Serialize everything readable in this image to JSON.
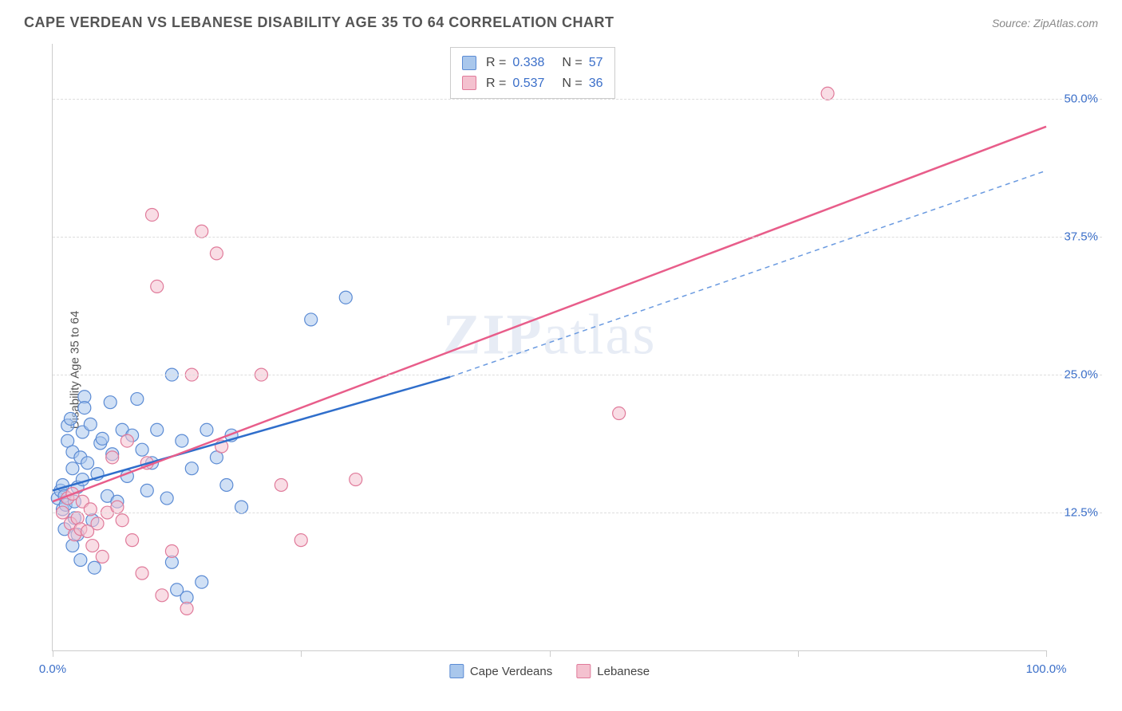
{
  "header": {
    "title": "CAPE VERDEAN VS LEBANESE DISABILITY AGE 35 TO 64 CORRELATION CHART",
    "source_label": "Source: ZipAtlas.com"
  },
  "chart": {
    "type": "scatter",
    "ylabel": "Disability Age 35 to 64",
    "watermark": "ZIPatlas",
    "xlim": [
      0,
      100
    ],
    "ylim": [
      0,
      55
    ],
    "xtick_positions": [
      0,
      25,
      50,
      75,
      100
    ],
    "xtick_labels": [
      "0.0%",
      "",
      "",
      "",
      "100.0%"
    ],
    "ytick_positions": [
      12.5,
      25.0,
      37.5,
      50.0
    ],
    "ytick_labels": [
      "12.5%",
      "25.0%",
      "37.5%",
      "50.0%"
    ],
    "grid_color": "#dddddd",
    "axis_color": "#cccccc",
    "background_color": "#ffffff",
    "tick_label_color": "#3b6fc9",
    "label_fontsize": 15,
    "title_fontsize": 18,
    "marker_radius": 8,
    "marker_opacity": 0.55,
    "series": [
      {
        "name": "Cape Verdeans",
        "fill": "#a9c7ec",
        "stroke": "#5b8bd4",
        "line_color": "#2f6ecb",
        "line_style": "solid",
        "dashed_ext_color": "#6a9ae0",
        "r": "0.338",
        "n": "57",
        "trend": {
          "x1": 0,
          "y1": 14.5,
          "x2": 40,
          "y2": 24.8
        },
        "trend_ext": {
          "x1": 40,
          "y1": 24.8,
          "x2": 100,
          "y2": 43.5
        },
        "points": [
          [
            0.5,
            13.8
          ],
          [
            0.8,
            14.5
          ],
          [
            1.0,
            12.8
          ],
          [
            1.0,
            15.0
          ],
          [
            1.2,
            14.0
          ],
          [
            1.3,
            13.2
          ],
          [
            1.5,
            19.0
          ],
          [
            1.5,
            20.4
          ],
          [
            1.8,
            21.0
          ],
          [
            2.0,
            18.0
          ],
          [
            2.0,
            16.5
          ],
          [
            2.2,
            13.5
          ],
          [
            2.2,
            12.0
          ],
          [
            2.5,
            10.5
          ],
          [
            2.5,
            14.8
          ],
          [
            2.8,
            17.5
          ],
          [
            3.0,
            15.5
          ],
          [
            3.0,
            19.8
          ],
          [
            3.2,
            23.0
          ],
          [
            3.2,
            22.0
          ],
          [
            3.5,
            17.0
          ],
          [
            3.8,
            20.5
          ],
          [
            4.0,
            11.8
          ],
          [
            4.2,
            7.5
          ],
          [
            4.5,
            16.0
          ],
          [
            4.8,
            18.8
          ],
          [
            5.0,
            19.2
          ],
          [
            5.5,
            14.0
          ],
          [
            5.8,
            22.5
          ],
          [
            6.0,
            17.8
          ],
          [
            6.5,
            13.5
          ],
          [
            7.0,
            20.0
          ],
          [
            7.5,
            15.8
          ],
          [
            8.0,
            19.5
          ],
          [
            8.5,
            22.8
          ],
          [
            9.0,
            18.2
          ],
          [
            9.5,
            14.5
          ],
          [
            10.0,
            17.0
          ],
          [
            10.5,
            20.0
          ],
          [
            11.5,
            13.8
          ],
          [
            12.0,
            8.0
          ],
          [
            12.5,
            5.5
          ],
          [
            13.0,
            19.0
          ],
          [
            13.5,
            4.8
          ],
          [
            14.0,
            16.5
          ],
          [
            15.0,
            6.2
          ],
          [
            16.5,
            17.5
          ],
          [
            17.5,
            15.0
          ],
          [
            18.0,
            19.5
          ],
          [
            12.0,
            25.0
          ],
          [
            15.5,
            20.0
          ],
          [
            19.0,
            13.0
          ],
          [
            29.5,
            32.0
          ],
          [
            26.0,
            30.0
          ],
          [
            1.2,
            11.0
          ],
          [
            2.0,
            9.5
          ],
          [
            2.8,
            8.2
          ]
        ]
      },
      {
        "name": "Lebanese",
        "fill": "#f4c1cf",
        "stroke": "#e07a9a",
        "line_color": "#e85d8a",
        "line_style": "solid",
        "r": "0.537",
        "n": "36",
        "trend": {
          "x1": 0,
          "y1": 13.5,
          "x2": 100,
          "y2": 47.5
        },
        "points": [
          [
            1.0,
            12.5
          ],
          [
            1.5,
            13.8
          ],
          [
            1.8,
            11.5
          ],
          [
            2.0,
            14.2
          ],
          [
            2.2,
            10.5
          ],
          [
            2.5,
            12.0
          ],
          [
            2.8,
            11.0
          ],
          [
            3.0,
            13.5
          ],
          [
            3.5,
            10.8
          ],
          [
            3.8,
            12.8
          ],
          [
            4.0,
            9.5
          ],
          [
            4.5,
            11.5
          ],
          [
            5.0,
            8.5
          ],
          [
            5.5,
            12.5
          ],
          [
            6.0,
            17.5
          ],
          [
            6.5,
            13.0
          ],
          [
            7.0,
            11.8
          ],
          [
            7.5,
            19.0
          ],
          [
            8.0,
            10.0
          ],
          [
            9.0,
            7.0
          ],
          [
            9.5,
            17.0
          ],
          [
            10.0,
            39.5
          ],
          [
            10.5,
            33.0
          ],
          [
            11.0,
            5.0
          ],
          [
            12.0,
            9.0
          ],
          [
            13.5,
            3.8
          ],
          [
            14.0,
            25.0
          ],
          [
            15.0,
            38.0
          ],
          [
            16.5,
            36.0
          ],
          [
            17.0,
            18.5
          ],
          [
            21.0,
            25.0
          ],
          [
            23.0,
            15.0
          ],
          [
            25.0,
            10.0
          ],
          [
            30.5,
            15.5
          ],
          [
            57.0,
            21.5
          ],
          [
            78.0,
            50.5
          ]
        ]
      }
    ],
    "legend_top": {
      "r_prefix": "R =",
      "n_prefix": "N ="
    }
  }
}
